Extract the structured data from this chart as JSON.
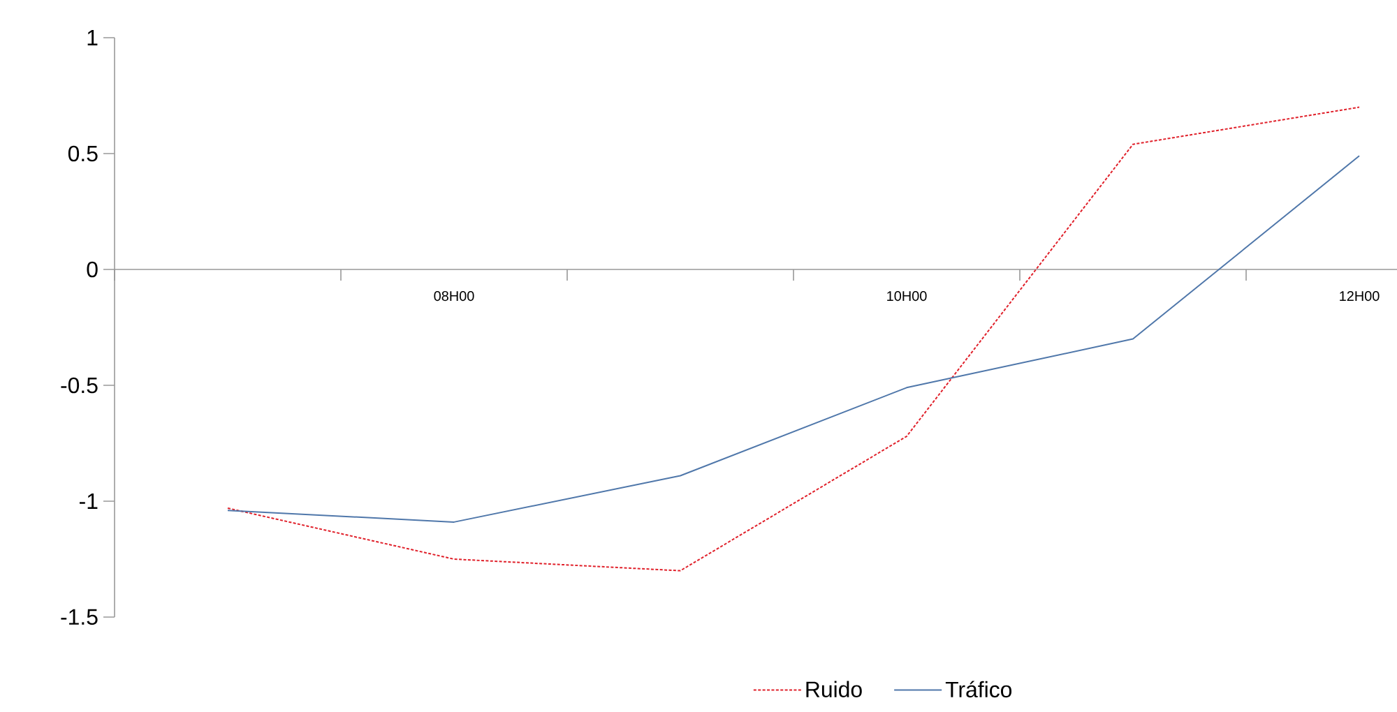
{
  "chart_data": {
    "type": "line",
    "categories": [
      null,
      "08H00",
      null,
      "10H00",
      null,
      "12H00"
    ],
    "series": [
      {
        "name": "Ruido",
        "color": "#e0202a",
        "line_style": "dashed",
        "values": [
          -1.03,
          -1.25,
          -1.3,
          -0.72,
          0.54,
          0.7
        ]
      },
      {
        "name": "Tráfico",
        "color": "#4f77aa",
        "line_style": "solid",
        "values": [
          -1.04,
          -1.09,
          -0.89,
          -0.51,
          -0.3,
          0.49
        ]
      }
    ],
    "ylim": [
      -1.5,
      1
    ],
    "yticks": [
      -1.5,
      -1,
      -0.5,
      0,
      0.5,
      1
    ],
    "grid": false,
    "legend": "bottom",
    "marker": "none"
  }
}
